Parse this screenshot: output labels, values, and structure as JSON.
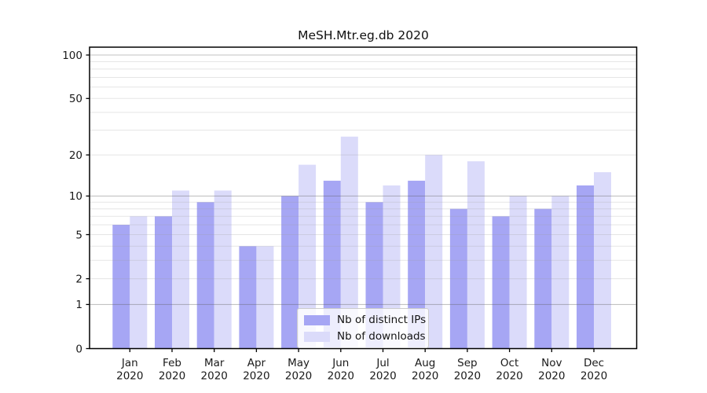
{
  "chart_data": {
    "type": "bar",
    "title": "MeSH.Mtr.eg.db 2020",
    "categories": [
      "Jan",
      "Feb",
      "Mar",
      "Apr",
      "May",
      "Jun",
      "Jul",
      "Aug",
      "Sep",
      "Oct",
      "Nov",
      "Dec"
    ],
    "year": "2020",
    "series": [
      {
        "key": "distinct-ips",
        "name": "Nb of distinct IPs",
        "color": "#a6a6f4",
        "values": [
          6,
          7,
          9,
          4,
          10,
          13,
          9,
          13,
          8,
          7,
          8,
          12
        ]
      },
      {
        "key": "downloads",
        "name": "Nb of downloads",
        "color": "#dbdbfa",
        "values": [
          7,
          11,
          11,
          4,
          17,
          27,
          12,
          20,
          18,
          10,
          10,
          15
        ]
      }
    ],
    "xlabel": "",
    "ylabel": "",
    "yscale": "log1p",
    "yticks": [
      0,
      1,
      2,
      5,
      10,
      20,
      50,
      100
    ],
    "ylim": [
      0,
      112
    ],
    "grid": true,
    "legend_position": "lower-center",
    "frame": true,
    "colors": {
      "axis": "#000000",
      "major_grid": "#c5c5c5",
      "minor_grid": "#e7e7e7",
      "background": "#ffffff"
    }
  }
}
